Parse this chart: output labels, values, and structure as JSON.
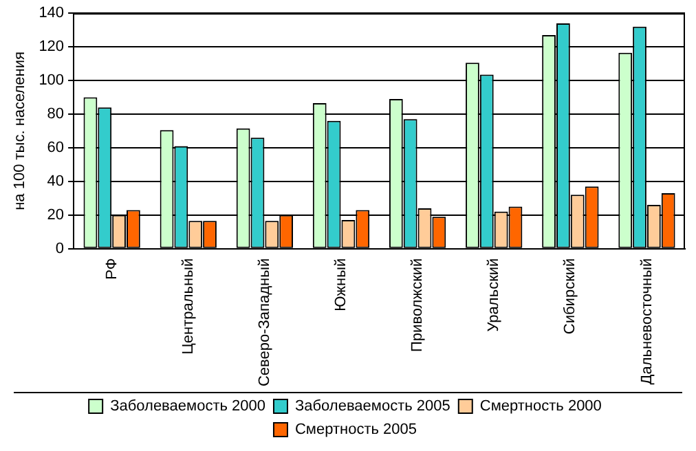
{
  "chart_data": {
    "type": "bar",
    "ylabel": "на 100 тыс. населения",
    "categories": [
      "РФ",
      "Центральный",
      "Северо-Западный",
      "Южный",
      "Приволжский",
      "Уральский",
      "Сибирский",
      "Дальневосточный"
    ],
    "series": [
      {
        "name": "Заболеваемость 2000",
        "color": "#ccffcc",
        "values": [
          90,
          70.5,
          71.5,
          86.5,
          89,
          110.5,
          127,
          116.5
        ]
      },
      {
        "name": "Заболеваемость 2005",
        "color": "#33cccc",
        "values": [
          84,
          61,
          66,
          76,
          77,
          103.5,
          134,
          132
        ]
      },
      {
        "name": "Смертность 2000",
        "color": "#ffcc99",
        "values": [
          20,
          16.5,
          16.5,
          17,
          24,
          22,
          32,
          26
        ]
      },
      {
        "name": "Смертность 2005",
        "color": "#ff6600",
        "values": [
          23,
          16.5,
          20,
          23,
          19,
          25,
          37,
          33
        ]
      }
    ],
    "ylim": [
      0,
      140
    ],
    "yticks": [
      0,
      20,
      40,
      60,
      80,
      100,
      120,
      140
    ],
    "grid": "y",
    "legend": "bottom"
  }
}
